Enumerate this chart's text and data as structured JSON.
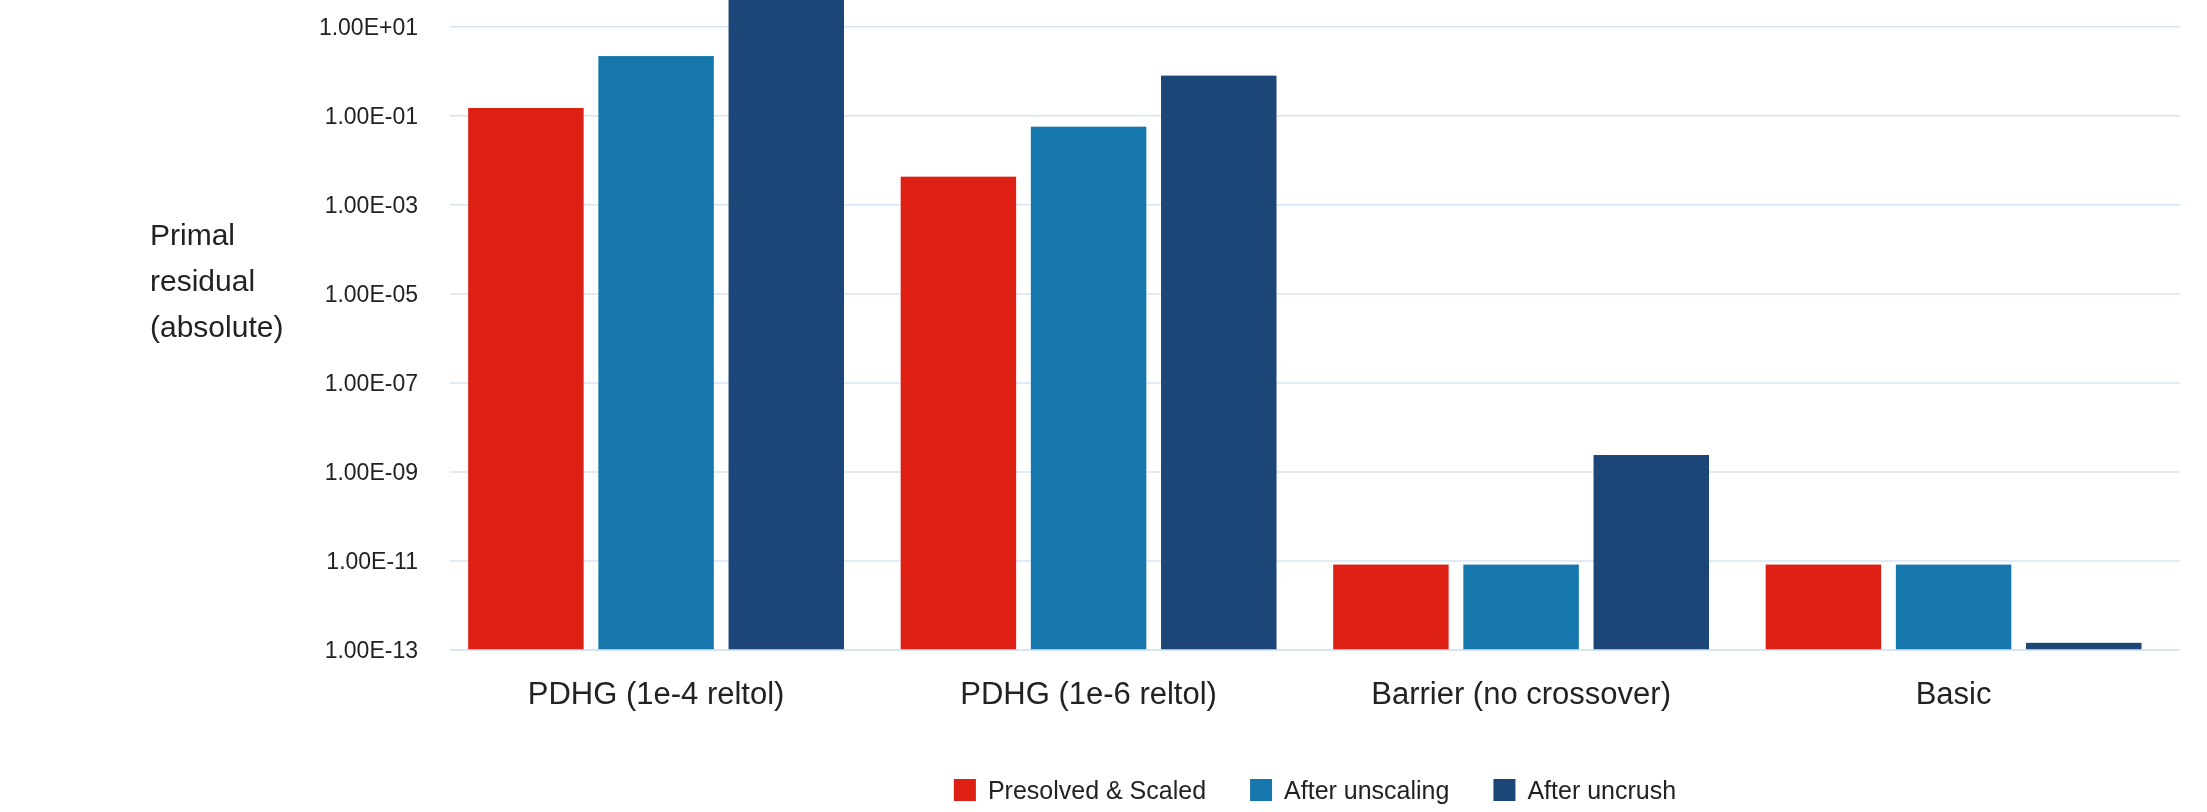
{
  "chart_data": {
    "type": "bar",
    "ylabel": "Primal residual (absolute)",
    "log": true,
    "grid": "y",
    "legend": "bottom",
    "categories": [
      "PDHG (1e-4 reltol)",
      "PDHG (1e-6 reltol)",
      "Barrier (no crossover)",
      "Basic"
    ],
    "ylim": [
      1e-13,
      40
    ],
    "yticks": [
      {
        "value": 1e-13,
        "label": "1.00E-13"
      },
      {
        "value": 1e-11,
        "label": "1.00E-11"
      },
      {
        "value": 1e-09,
        "label": "1.00E-09"
      },
      {
        "value": 1e-07,
        "label": "1.00E-07"
      },
      {
        "value": 1e-05,
        "label": "1.00E-05"
      },
      {
        "value": 0.001,
        "label": "1.00E-03"
      },
      {
        "value": 0.1,
        "label": "1.00E-01"
      },
      {
        "value": 10,
        "label": "1.00E+01"
      }
    ],
    "series": [
      {
        "name": "Presolved & Scaled",
        "color": "#dd2013",
        "values": [
          0.15,
          0.0043,
          8.3e-12,
          8.3e-12
        ]
      },
      {
        "name": "After unscaling",
        "color": "#1677ad",
        "values": [
          2.2,
          0.057,
          8.3e-12,
          8.3e-12
        ]
      },
      {
        "name": "After uncrush",
        "color": "#1b4677",
        "values": [
          40,
          0.8,
          2.4e-09,
          1.45e-13
        ]
      }
    ]
  }
}
